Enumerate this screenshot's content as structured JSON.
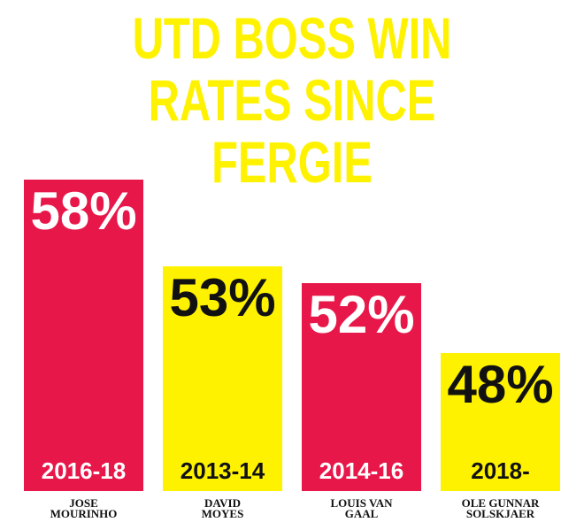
{
  "chart_data": {
    "type": "bar",
    "title": "UTD BOSS WIN\nRATES SINCE FERGIE",
    "categories": [
      "JOSE\nMOURINHO",
      "DAVID\nMOYES",
      "LOUIS VAN\nGAAL",
      "OLE GUNNAR\nSOLSKJAER"
    ],
    "periods": [
      "2016-18",
      "2013-14",
      "2014-16",
      "2018-"
    ],
    "values": [
      58,
      53,
      52,
      48
    ],
    "value_labels": [
      "58%",
      "53%",
      "52%",
      "48%"
    ],
    "colors": [
      "#e8174a",
      "#fff200",
      "#e8174a",
      "#fff200"
    ],
    "ylim": [
      40,
      60
    ]
  }
}
